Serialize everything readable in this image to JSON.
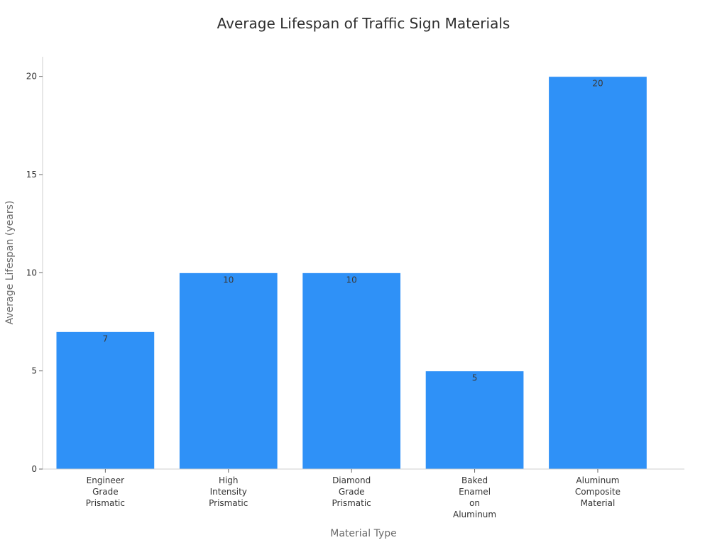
{
  "chart_data": {
    "type": "bar",
    "title": "Average Lifespan of Traffic Sign Materials",
    "xlabel": "Material Type",
    "ylabel": "Average Lifespan (years)",
    "categories": [
      [
        "Engineer",
        "Grade",
        "Prismatic"
      ],
      [
        "High",
        "Intensity",
        "Prismatic"
      ],
      [
        "Diamond",
        "Grade",
        "Prismatic"
      ],
      [
        "Baked",
        "Enamel",
        "on",
        "Aluminum"
      ],
      [
        "Aluminum",
        "Composite",
        "Material"
      ]
    ],
    "values": [
      7,
      10,
      10,
      5,
      20
    ],
    "data_labels": [
      "7",
      "10",
      "10",
      "5",
      "20"
    ],
    "ylim": [
      0,
      21
    ],
    "yticks": [
      0,
      5,
      10,
      15,
      20
    ],
    "grid": false,
    "bar_color": "#2f91f7",
    "bar_edge_color": "#ffffff"
  }
}
